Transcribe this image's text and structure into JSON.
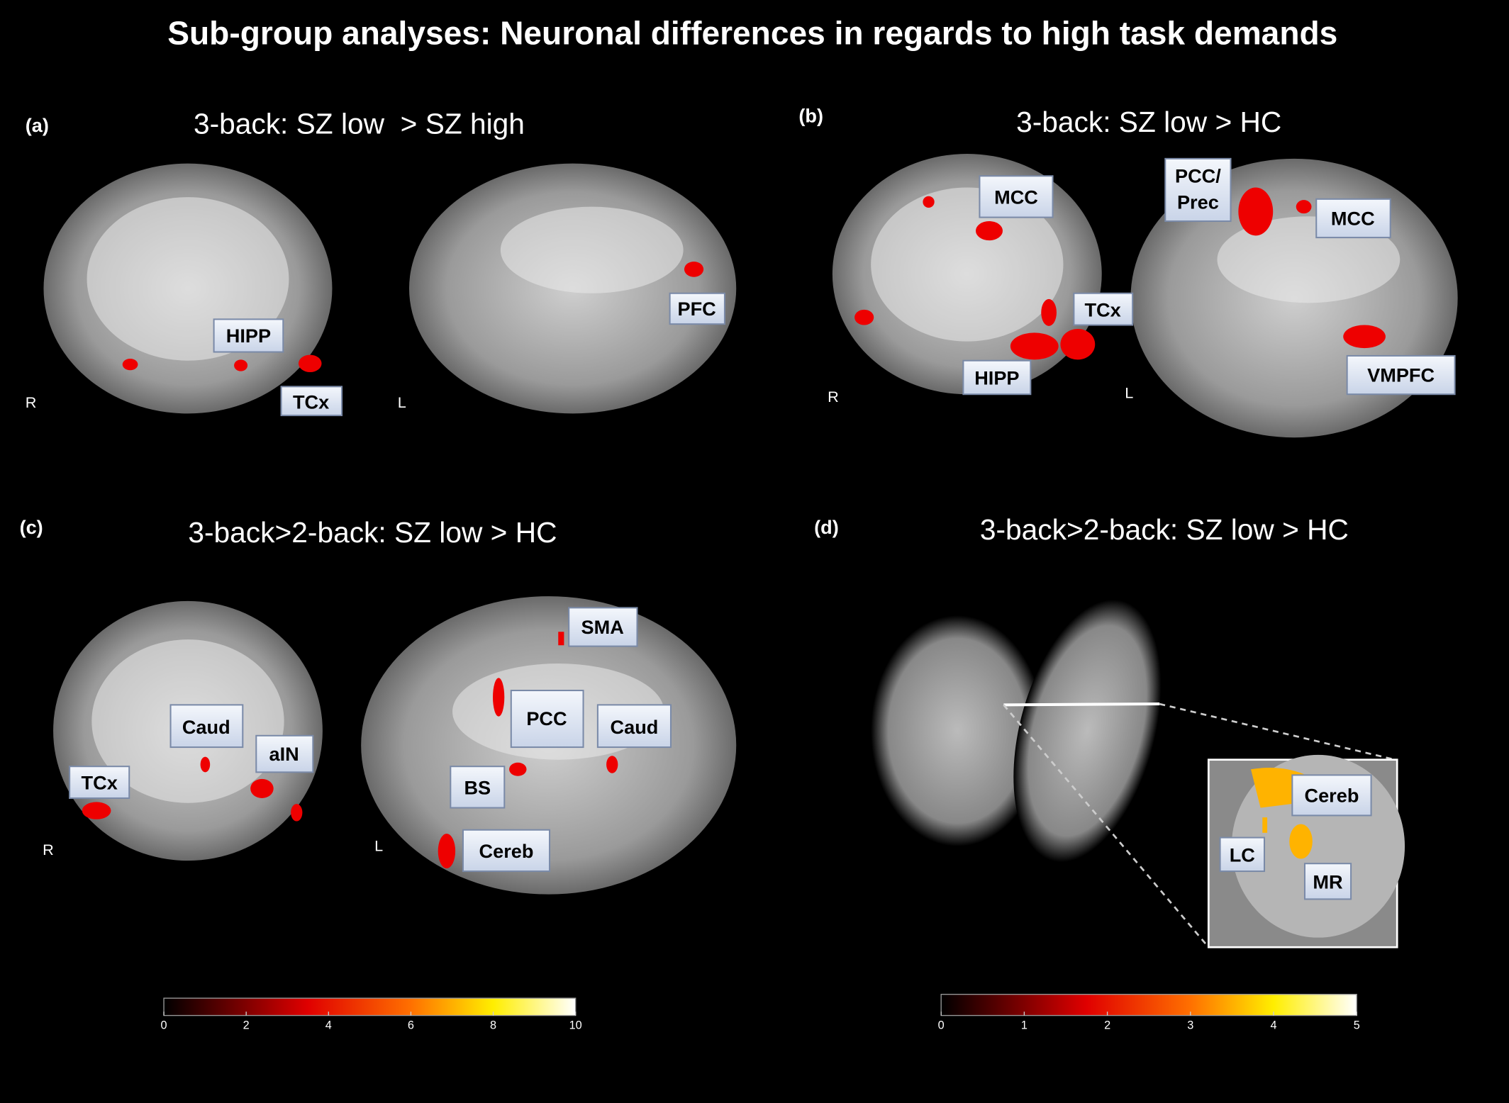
{
  "title": "Sub-group analyses: Neuronal differences in regards to high task demands",
  "panels": [
    {
      "letter": "(a)",
      "title": "3-back: SZ low  > SZ high",
      "labels": [
        "HIPP",
        "TCx",
        "PFC"
      ],
      "sides": [
        "R",
        "L"
      ]
    },
    {
      "letter": "(b)",
      "title": "3-back: SZ low > HC",
      "labels": [
        "MCC",
        "PCC/",
        "Prec",
        "MCC",
        "TCx",
        "HIPP",
        "VMPFC"
      ],
      "sides": [
        "R",
        "L"
      ]
    },
    {
      "letter": "(c)",
      "title": "3-back>2-back: SZ low > HC",
      "labels": [
        "Caud",
        "aIN",
        "TCx",
        "SMA",
        "PCC",
        "Caud",
        "BS",
        "Cereb"
      ],
      "sides": [
        "R",
        "L"
      ]
    },
    {
      "letter": "(d)",
      "title": "3-back>2-back: SZ low > HC",
      "labels": [
        "Cereb",
        "LC",
        "MR"
      ]
    }
  ],
  "colorbars": [
    {
      "ticks": [
        0,
        2,
        4,
        6,
        8,
        10
      ]
    },
    {
      "ticks": [
        0,
        1,
        2,
        3,
        4,
        5
      ]
    }
  ]
}
